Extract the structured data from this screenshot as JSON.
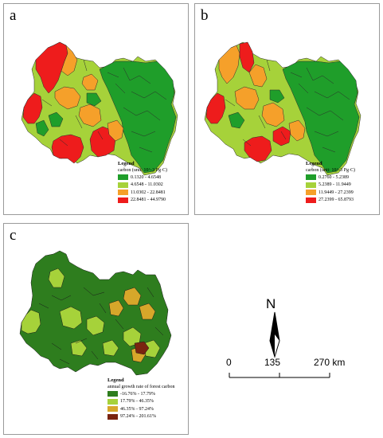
{
  "panels": {
    "a": {
      "label": "a",
      "legend_title": "Legend",
      "legend_subtitle": "carbon (unit: 10^-3 Pg·C)",
      "classes": [
        {
          "range": "0.1320 - 4.6548",
          "color": "#1f9e2a"
        },
        {
          "range": "4.6548 - 11.0302",
          "color": "#a6d23a"
        },
        {
          "range": "11.0302 - 22.8481",
          "color": "#f5a02a"
        },
        {
          "range": "22.8481 - 44.9790",
          "color": "#ee1c1c"
        }
      ]
    },
    "b": {
      "label": "b",
      "legend_title": "Legend",
      "legend_subtitle": "carbon (unit: 10^-3 Pg·C)",
      "classes": [
        {
          "range": "0.2760 - 5.2389",
          "color": "#1f9e2a"
        },
        {
          "range": "5.2389 - 11.9449",
          "color": "#a6d23a"
        },
        {
          "range": "11.9449 - 27.2399",
          "color": "#f5a02a"
        },
        {
          "range": "27.2399 - 65.8793",
          "color": "#ee1c1c"
        }
      ]
    },
    "c": {
      "label": "c",
      "legend_title": "Legend",
      "legend_subtitle": "annual growth rate of forest carbon",
      "classes": [
        {
          "range": "-16.76% - 17.79%",
          "color": "#2e7d1e"
        },
        {
          "range": "17.79% - 46.35%",
          "color": "#a6d23a"
        },
        {
          "range": "46.35% - 97.24%",
          "color": "#d7a72a"
        },
        {
          "range": "97.24% - 201.61%",
          "color": "#7a2410"
        }
      ]
    }
  },
  "north_arrow": {
    "letter": "N",
    "icon": "north-arrow-icon"
  },
  "scale_bar": {
    "ticks": [
      "0",
      "135",
      "270 km"
    ]
  }
}
